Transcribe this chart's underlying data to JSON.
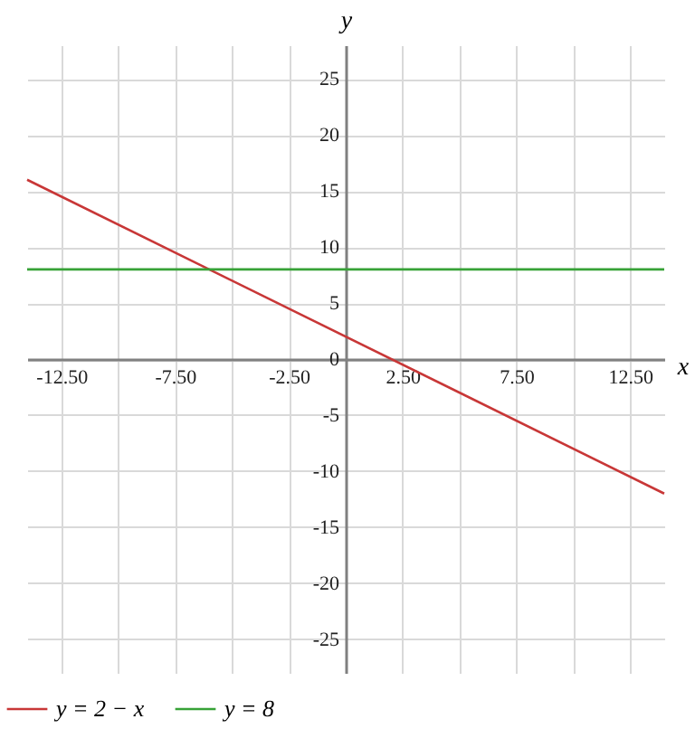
{
  "chart_data": {
    "type": "line",
    "xlabel": "x",
    "ylabel": "y",
    "xlim": [
      -14,
      14
    ],
    "ylim": [
      -28,
      28
    ],
    "xticks": [
      {
        "value": -12.5,
        "label": "-12.50"
      },
      {
        "value": -10,
        "label": null
      },
      {
        "value": -7.5,
        "label": "-7.50"
      },
      {
        "value": -5,
        "label": null
      },
      {
        "value": -2.5,
        "label": "-2.50"
      },
      {
        "value": 0,
        "label": null
      },
      {
        "value": 2.5,
        "label": "2.50"
      },
      {
        "value": 5,
        "label": null
      },
      {
        "value": 7.5,
        "label": "7.50"
      },
      {
        "value": 10,
        "label": null
      },
      {
        "value": 12.5,
        "label": "12.50"
      }
    ],
    "yticks": [
      -25,
      -20,
      -15,
      -10,
      -5,
      0,
      5,
      10,
      15,
      20,
      25
    ],
    "grid": true,
    "legend": "bottom",
    "x": [
      -14,
      14
    ],
    "series": [
      {
        "name": "y = 2 − x",
        "color": "#c83737",
        "values": [
          16,
          -12
        ]
      },
      {
        "name": "y = 8",
        "color": "#37a237",
        "values": [
          8,
          8
        ]
      }
    ]
  }
}
